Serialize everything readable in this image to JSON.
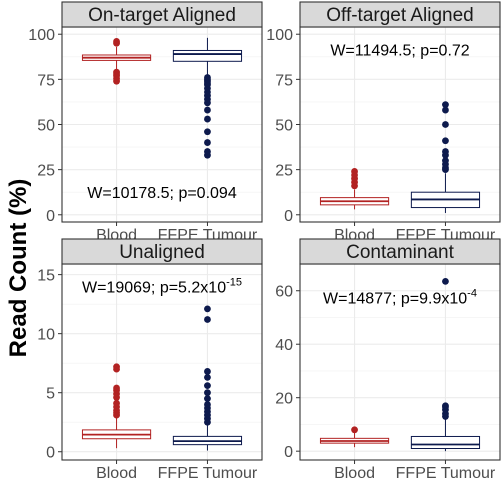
{
  "figure": {
    "ylabel": "Read Count (%)"
  },
  "chart_data": [
    {
      "type": "box",
      "title": "On-target Aligned",
      "categories": [
        "Blood",
        "FFPE Tumour"
      ],
      "ylim": [
        -4,
        104
      ],
      "yticks": [
        0,
        25,
        50,
        75,
        100
      ],
      "annotation": {
        "text": "W=10178.5; p=0.094",
        "sup": "",
        "x": 1.5,
        "y": 12.5
      },
      "boxes": [
        {
          "category": "Blood",
          "min": 80,
          "q1": 85.5,
          "median": 87,
          "q3": 88.5,
          "max": 93,
          "outliers": [
            74,
            75.5,
            77,
            78,
            79,
            95,
            96
          ]
        },
        {
          "category": "FFPE Tumour",
          "min": 77,
          "q1": 85,
          "median": 89,
          "q3": 91,
          "max": 98,
          "outliers": [
            33,
            35,
            40,
            46,
            53,
            58,
            62,
            64,
            66,
            68,
            70,
            72,
            73,
            74,
            75,
            76
          ]
        }
      ]
    },
    {
      "type": "box",
      "title": "Off-target Aligned",
      "categories": [
        "Blood",
        "FFPE Tumour"
      ],
      "ylim": [
        -4,
        104
      ],
      "yticks": [
        0,
        25,
        50,
        75,
        100
      ],
      "annotation": {
        "text": "W=11494.5; p=0.72",
        "sup": "",
        "x": 1.5,
        "y": 91.5
      },
      "boxes": [
        {
          "category": "Blood",
          "min": 3,
          "q1": 5.5,
          "median": 7.5,
          "q3": 9.5,
          "max": 14,
          "outliers": [
            16,
            18,
            20,
            22,
            24
          ]
        },
        {
          "category": "FFPE Tumour",
          "min": 1,
          "q1": 4,
          "median": 8.5,
          "q3": 12.5,
          "max": 23,
          "outliers": [
            25,
            26,
            28,
            30,
            33,
            35,
            41,
            50,
            58,
            61
          ]
        }
      ]
    },
    {
      "type": "box",
      "title": "Unaligned",
      "categories": [
        "Blood",
        "FFPE Tumour"
      ],
      "ylim": [
        -0.7,
        15.9
      ],
      "yticks": [
        0,
        5,
        10,
        15
      ],
      "annotation": {
        "text": "W=19069; p=5.2x10",
        "sup": "-15",
        "x": 1.5,
        "y": 14.0
      },
      "boxes": [
        {
          "category": "Blood",
          "min": 0.3,
          "q1": 1.1,
          "median": 1.45,
          "q3": 1.85,
          "max": 2.9,
          "outliers": [
            3.1,
            3.3,
            3.5,
            3.8,
            4.1,
            4.6,
            4.9,
            5.2,
            5.4,
            7.0,
            7.2
          ]
        },
        {
          "category": "FFPE Tumour",
          "min": 0.1,
          "q1": 0.6,
          "median": 0.9,
          "q3": 1.3,
          "max": 2.3,
          "outliers": [
            2.5,
            2.8,
            3.1,
            3.4,
            3.7,
            4.0,
            4.5,
            5.0,
            5.6,
            6.3,
            6.8,
            11.2,
            12.1
          ]
        }
      ]
    },
    {
      "type": "box",
      "title": "Contaminant",
      "categories": [
        "Blood",
        "FFPE Tumour"
      ],
      "ylim": [
        -3.3,
        70.0
      ],
      "yticks": [
        0,
        20,
        40,
        60
      ],
      "annotation": {
        "text": "W=14877; p=9.9x10",
        "sup": "-4",
        "x": 1.5,
        "y": 57.5
      },
      "boxes": [
        {
          "category": "Blood",
          "min": 1.5,
          "q1": 3,
          "median": 3.8,
          "q3": 4.8,
          "max": 7,
          "outliers": [
            8
          ]
        },
        {
          "category": "FFPE Tumour",
          "min": 0,
          "q1": 1,
          "median": 2.5,
          "q3": 5.5,
          "max": 12,
          "outliers": [
            13,
            14,
            15.5,
            16.5,
            17,
            63.5
          ]
        }
      ]
    }
  ]
}
